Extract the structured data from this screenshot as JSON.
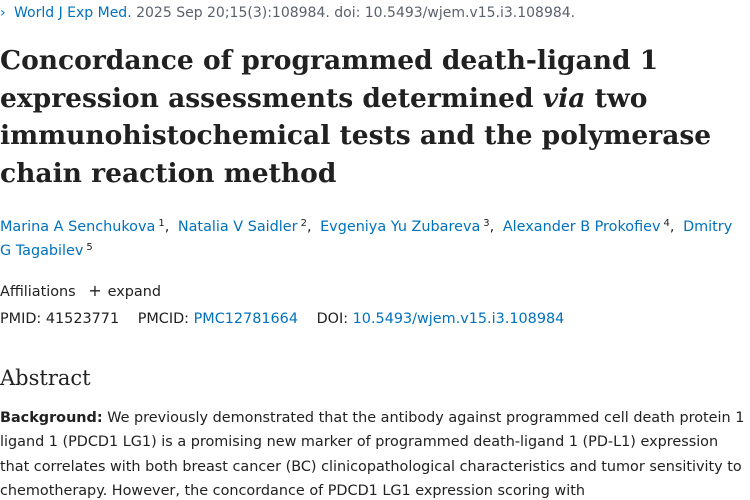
{
  "citation": {
    "chevron": "›",
    "journal": "World J Exp Med.",
    "details": "2025 Sep 20;15(3):108984. doi: 10.5493/wjem.v15.i3.108984."
  },
  "article": {
    "title_part1": "Concordance of programmed death-ligand 1 expression assessments determined ",
    "title_italic": "via",
    "title_part2": " two immunohistochemical tests and the polymerase chain reaction method"
  },
  "authors": [
    {
      "name": "Marina A Senchukova",
      "affiliation": "1"
    },
    {
      "name": "Natalia V Saidler",
      "affiliation": "2"
    },
    {
      "name": "Evgeniya Yu Zubareva",
      "affiliation": "3"
    },
    {
      "name": "Alexander B Prokofiev",
      "affiliation": "4"
    },
    {
      "name": "Dmitry G Tagabilev",
      "affiliation": "5"
    }
  ],
  "affiliations": {
    "label": "Affiliations",
    "expand_icon": "+",
    "expand_label": "expand"
  },
  "identifiers": {
    "pmid_label": "PMID:",
    "pmid": "41523771",
    "pmcid_label": "PMCID:",
    "pmcid": "PMC12781664",
    "doi_label": "DOI:",
    "doi": "10.5493/wjem.v15.i3.108984"
  },
  "abstract": {
    "heading": "Abstract",
    "background_label": "Background:",
    "background_text": " We previously demonstrated that the antibody against programmed cell death protein 1 ligand 1 (PDCD1 LG1) is a promising new marker of programmed death-ligand 1 (PD-L1) expression that correlates with both breast cancer (BC) clinicopathological characteristics and tumor sensitivity to chemotherapy. However, the concordance of PDCD1 LG1 expression scoring with"
  },
  "colors": {
    "link": "#0071bc",
    "text": "#212121"
  }
}
